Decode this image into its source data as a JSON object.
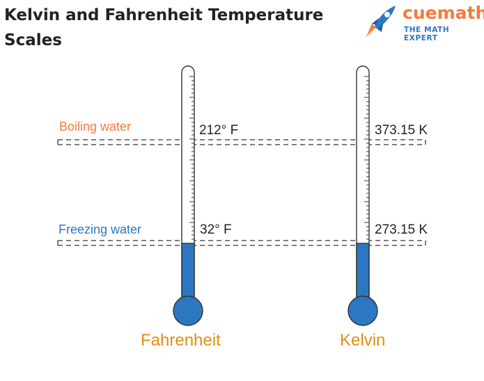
{
  "title": "Kelvin and Fahrenheit Temperature Scales",
  "logo": {
    "wordmark": "cuemath",
    "tagline": "THE MATH EXPERT",
    "icon": "rocket-icon"
  },
  "levels": {
    "boiling_label": "Boiling water",
    "freezing_label": "Freezing water"
  },
  "thermometers": [
    {
      "scale": "Fahrenheit",
      "boiling": "212° F",
      "freezing": "32° F"
    },
    {
      "scale": "Kelvin",
      "boiling": "373.15 K",
      "freezing": "273.15 K"
    }
  ],
  "colors": {
    "accent_orange": "#f47b3e",
    "accent_blue": "#2b78c1",
    "scale_name": "#e08e12",
    "mercury": "#2b78c1"
  }
}
